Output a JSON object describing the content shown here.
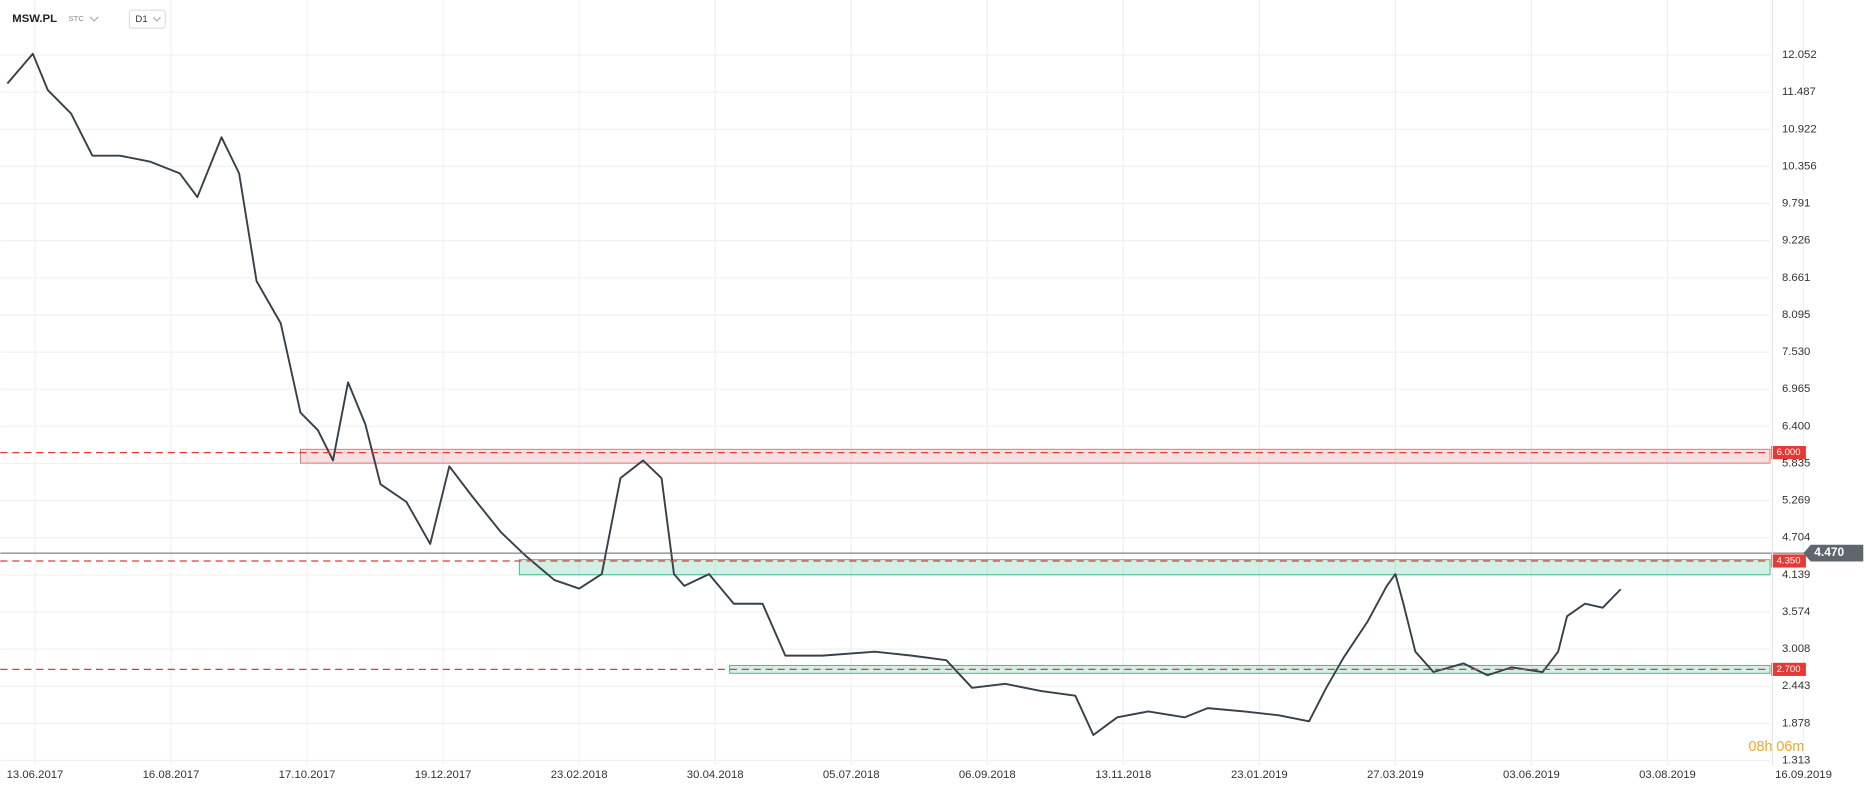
{
  "chart_data": {
    "type": "line",
    "symbol": "MSW.PL",
    "market": "STC",
    "interval": "D1",
    "timer": "08h 06m",
    "grid": true,
    "ylim": [
      1.24,
      12.89
    ],
    "yticks": [
      1.313,
      1.878,
      2.443,
      3.008,
      3.574,
      4.139,
      4.704,
      5.269,
      5.835,
      {
        "value": 6.4,
        "label": "6.400"
      },
      6.965,
      {
        "value": 7.53,
        "label": "7.530"
      },
      8.095,
      8.661,
      9.226,
      9.791,
      10.356,
      10.922,
      11.487,
      12.052
    ],
    "xticks": [
      "13.06.2017",
      "16.08.2017",
      "17.10.2017",
      "19.12.2017",
      "23.02.2018",
      "30.04.2018",
      "05.07.2018",
      "06.09.2018",
      "13.11.2018",
      "23.01.2019",
      "27.03.2019",
      "03.06.2019",
      "03.08.2019",
      "16.09.2019"
    ],
    "series": [
      {
        "color": "#36414b",
        "x": [
          "31.05.2017",
          "12.06.2017",
          "19.06.2017",
          "30.06.2017",
          "10.07.2017",
          "23.07.2017",
          "06.08.2017",
          "20.08.2017",
          "28.08.2017",
          "08.09.2017",
          "16.09.2017",
          "24.09.2017",
          "05.10.2017",
          "14.10.2017",
          "22.10.2017",
          "29.10.2017",
          "05.11.2017",
          "13.11.2017",
          "20.11.2017",
          "02.12.2017",
          "13.12.2017",
          "22.12.2017",
          "02.01.2018",
          "16.01.2018",
          "28.01.2018",
          "11.02.2018",
          "23.02.2018",
          "06.03.2018",
          "15.03.2018",
          "26.03.2018",
          "04.04.2018",
          "10.04.2018",
          "15.04.2018",
          "27.04.2018",
          "09.05.2018",
          "23.05.2018",
          "03.06.2018",
          "21.06.2018",
          "16.07.2018",
          "02.08.2018",
          "18.08.2018",
          "30.08.2018",
          "15.09.2018",
          "03.10.2018",
          "20.10.2018",
          "29.10.2018",
          "10.11.2018",
          "26.11.2018",
          "15.12.2018",
          "27.12.2018",
          "15.01.2019",
          "01.02.2019",
          "15.02.2019",
          "23.02.2019",
          "03.03.2019",
          "14.03.2019",
          "23.03.2019",
          "27.03.2019",
          "31.03.2019",
          "06.04.2019",
          "15.04.2019",
          "30.04.2019",
          "12.05.2019",
          "24.05.2019",
          "08.06.2019",
          "15.06.2019",
          "19.06.2019",
          "27.06.2019",
          "05.07.2019",
          "13.07.2019"
        ],
        "values": [
          11.62,
          12.07,
          11.52,
          11.16,
          10.52,
          10.52,
          10.43,
          10.25,
          9.89,
          10.8,
          10.25,
          8.61,
          7.97,
          6.61,
          6.34,
          5.88,
          7.07,
          6.43,
          5.52,
          5.25,
          4.61,
          5.79,
          5.34,
          4.79,
          4.43,
          4.06,
          3.93,
          4.15,
          5.61,
          5.88,
          5.61,
          4.15,
          3.97,
          4.15,
          3.7,
          3.7,
          2.91,
          2.91,
          2.97,
          2.91,
          2.84,
          2.42,
          2.48,
          2.37,
          2.3,
          1.7,
          1.97,
          2.06,
          1.97,
          2.11,
          2.06,
          2.0,
          1.91,
          2.42,
          2.88,
          3.42,
          3.97,
          4.15,
          3.7,
          2.97,
          2.66,
          2.79,
          2.61,
          2.73,
          2.66,
          2.97,
          3.51,
          3.7,
          3.64,
          3.92
        ]
      }
    ],
    "zones": [
      {
        "start": "14.10.2017",
        "low": 5.84,
        "high": 6.05,
        "color": "#e57373"
      },
      {
        "start": "25.01.2018",
        "low": 4.14,
        "high": 4.37,
        "color": "#3dbb8c"
      },
      {
        "start": "07.05.2018",
        "low": 2.64,
        "high": 2.76,
        "color": "#3dbb8c"
      }
    ],
    "levels": [
      {
        "value": 6,
        "label": "6.000",
        "color": "#e53935"
      },
      {
        "value": 4.35,
        "label": "4.350",
        "color": "#e53935"
      },
      {
        "value": 2.7,
        "label": "2.700",
        "color": "#e53935"
      }
    ],
    "last_price": {
      "value": 4.47,
      "label": "4.470",
      "color": "#5f666d"
    }
  }
}
